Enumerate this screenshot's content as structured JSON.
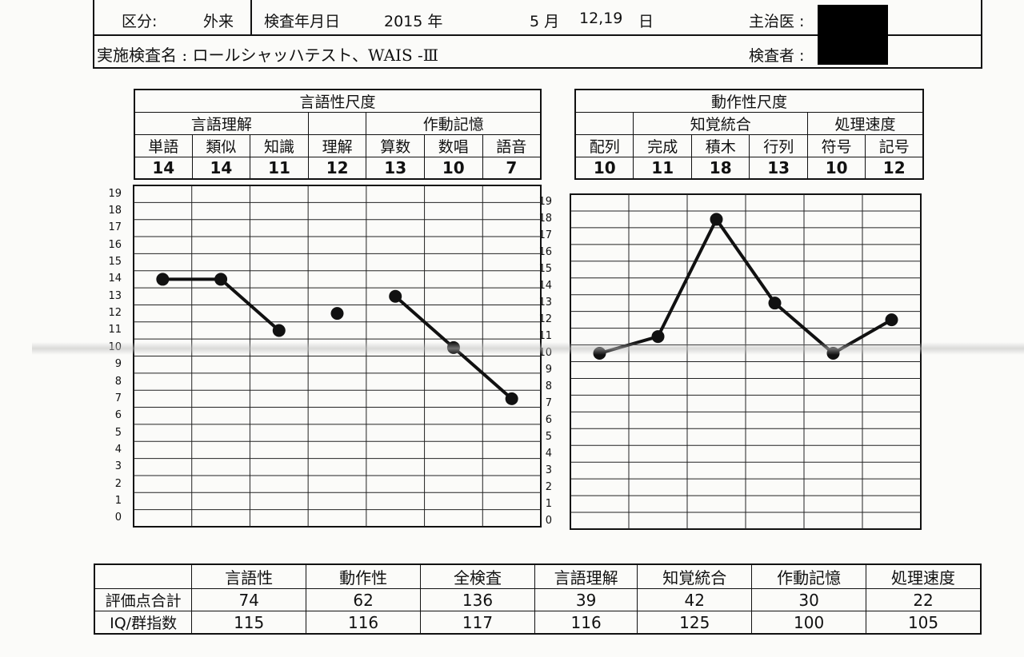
{
  "header": {
    "kubun_label": "区分:",
    "kubun_value": "外来",
    "date_label": "検査年月日",
    "year": "2015 年",
    "month": "5 月",
    "days": "12,19",
    "day_unit": "日",
    "physician_label": "主治医 :",
    "tests_label": "実施検査名 : ロールシャッハテスト、WAIS -Ⅲ",
    "examiner_label": "検査者 :"
  },
  "verbal": {
    "title": "言語性尺度",
    "groups": [
      "言語理解",
      "作動記憶"
    ],
    "subtests": [
      "単語",
      "類似",
      "知識",
      "理解",
      "算数",
      "数唱",
      "語音"
    ],
    "scores": [
      "14",
      "14",
      "11",
      "12",
      "13",
      "10",
      "7"
    ]
  },
  "performance": {
    "title": "動作性尺度",
    "groups": [
      "知覚統合",
      "処理速度"
    ],
    "subtests": [
      "配列",
      "完成",
      "積木",
      "行列",
      "符号",
      "記号"
    ],
    "scores": [
      "10",
      "11",
      "18",
      "13",
      "10",
      "12"
    ]
  },
  "chart_data": [
    {
      "type": "line",
      "title": "",
      "categories": [
        "単語",
        "類似",
        "知識",
        "理解",
        "算数",
        "数唱",
        "語音"
      ],
      "series": [
        {
          "values": [
            14,
            14,
            11,
            12,
            13,
            10,
            7
          ],
          "segments": [
            [
              0,
              2
            ],
            [
              4,
              6
            ]
          ]
        }
      ],
      "ylim": [
        0,
        19
      ],
      "yticks": [
        0,
        1,
        2,
        3,
        4,
        5,
        6,
        7,
        8,
        9,
        10,
        11,
        12,
        13,
        14,
        15,
        16,
        17,
        18,
        19
      ],
      "grid": true,
      "line_color": "#111111"
    },
    {
      "type": "line",
      "title": "",
      "categories": [
        "配列",
        "完成",
        "積木",
        "行列",
        "符号",
        "記号"
      ],
      "series": [
        {
          "values": [
            10,
            11,
            18,
            13,
            10,
            12
          ],
          "segments": [
            [
              0,
              5
            ]
          ]
        }
      ],
      "ylim": [
        0,
        19
      ],
      "yticks": [
        0,
        1,
        2,
        3,
        4,
        5,
        6,
        7,
        8,
        9,
        10,
        11,
        12,
        13,
        14,
        15,
        16,
        17,
        18,
        19
      ],
      "grid": true,
      "line_color": "#111111"
    }
  ],
  "summary": {
    "columns": [
      "言語性",
      "動作性",
      "全検査",
      "言語理解",
      "知覚統合",
      "作動記憶",
      "処理速度"
    ],
    "rows": [
      {
        "label": "評価点合計",
        "values": [
          "74",
          "62",
          "136",
          "39",
          "42",
          "30",
          "22"
        ]
      },
      {
        "label": "IQ/群指数",
        "values": [
          "115",
          "116",
          "117",
          "116",
          "125",
          "100",
          "105"
        ]
      }
    ]
  }
}
